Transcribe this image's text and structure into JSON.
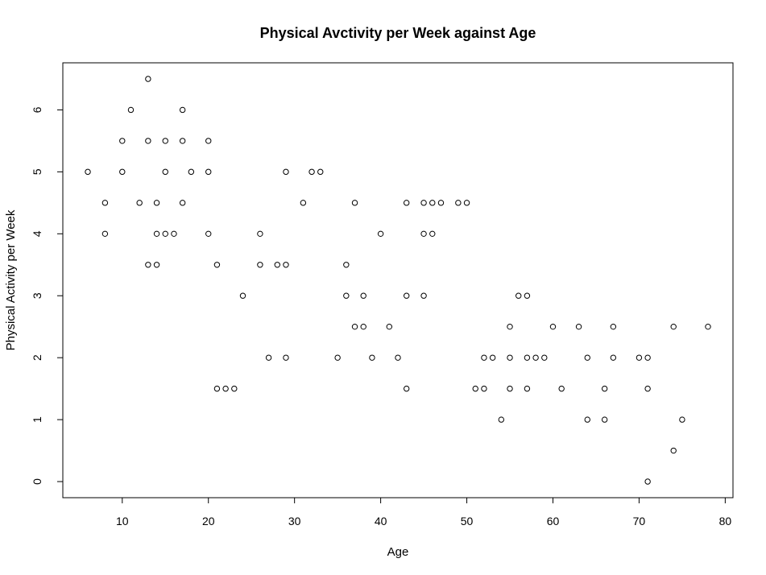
{
  "chart_data": {
    "type": "scatter",
    "title": "Physical Avctivity per Week against Age",
    "xlabel": "Age",
    "ylabel": "Physical Activity per Week",
    "xlim": [
      3.1,
      80.9
    ],
    "ylim": [
      -0.26,
      6.76
    ],
    "xticks": [
      "10",
      "20",
      "30",
      "40",
      "50",
      "60",
      "70",
      "80"
    ],
    "yticks": [
      "0",
      "1",
      "2",
      "3",
      "4",
      "5",
      "6"
    ],
    "xtick_values": [
      10,
      20,
      30,
      40,
      50,
      60,
      70,
      80
    ],
    "ytick_values": [
      0,
      1,
      2,
      3,
      4,
      5,
      6
    ],
    "marker": "open-circle",
    "grid": false,
    "points": [
      [
        6,
        5
      ],
      [
        8,
        4.5
      ],
      [
        8,
        4
      ],
      [
        10,
        5.5
      ],
      [
        10,
        5
      ],
      [
        11,
        6
      ],
      [
        12,
        4.5
      ],
      [
        13,
        6.5
      ],
      [
        13,
        5.5
      ],
      [
        13,
        3.5
      ],
      [
        14,
        4.5
      ],
      [
        14,
        4
      ],
      [
        14,
        3.5
      ],
      [
        15,
        5.5
      ],
      [
        15,
        5
      ],
      [
        15,
        4
      ],
      [
        16,
        4
      ],
      [
        17,
        6
      ],
      [
        17,
        5.5
      ],
      [
        17,
        4.5
      ],
      [
        18,
        5
      ],
      [
        20,
        5.5
      ],
      [
        20,
        5
      ],
      [
        20,
        4
      ],
      [
        21,
        3.5
      ],
      [
        21,
        1.5
      ],
      [
        22,
        1.5
      ],
      [
        23,
        1.5
      ],
      [
        24,
        3
      ],
      [
        26,
        4
      ],
      [
        26,
        3.5
      ],
      [
        27,
        2
      ],
      [
        28,
        3.5
      ],
      [
        29,
        5
      ],
      [
        29,
        3.5
      ],
      [
        29,
        2
      ],
      [
        31,
        4.5
      ],
      [
        32,
        5
      ],
      [
        33,
        5
      ],
      [
        35,
        2
      ],
      [
        36,
        3.5
      ],
      [
        36,
        3
      ],
      [
        37,
        4.5
      ],
      [
        37,
        2.5
      ],
      [
        38,
        3
      ],
      [
        38,
        2.5
      ],
      [
        39,
        2
      ],
      [
        40,
        4
      ],
      [
        41,
        2.5
      ],
      [
        42,
        2
      ],
      [
        43,
        4.5
      ],
      [
        43,
        3
      ],
      [
        43,
        1.5
      ],
      [
        45,
        4.5
      ],
      [
        45,
        4
      ],
      [
        45,
        3
      ],
      [
        46,
        4.5
      ],
      [
        46,
        4
      ],
      [
        47,
        4.5
      ],
      [
        49,
        4.5
      ],
      [
        50,
        4.5
      ],
      [
        51,
        1.5
      ],
      [
        52,
        2
      ],
      [
        52,
        1.5
      ],
      [
        53,
        2
      ],
      [
        54,
        1
      ],
      [
        55,
        2.5
      ],
      [
        55,
        2
      ],
      [
        55,
        1.5
      ],
      [
        56,
        3
      ],
      [
        57,
        3
      ],
      [
        57,
        2
      ],
      [
        57,
        1.5
      ],
      [
        58,
        2
      ],
      [
        59,
        2
      ],
      [
        60,
        2.5
      ],
      [
        61,
        1.5
      ],
      [
        63,
        2.5
      ],
      [
        64,
        2
      ],
      [
        64,
        1
      ],
      [
        66,
        1.5
      ],
      [
        66,
        1
      ],
      [
        67,
        2.5
      ],
      [
        67,
        2
      ],
      [
        70,
        2
      ],
      [
        71,
        2
      ],
      [
        71,
        1.5
      ],
      [
        71,
        0
      ],
      [
        74,
        2.5
      ],
      [
        74,
        0.5
      ],
      [
        75,
        1
      ],
      [
        78,
        2.5
      ]
    ]
  }
}
